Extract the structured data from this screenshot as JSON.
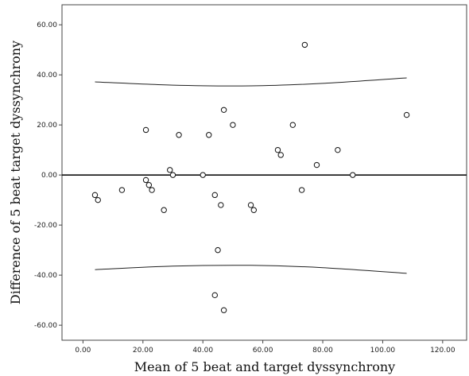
{
  "chart_data": {
    "type": "scatter",
    "xlabel": "Mean of 5 beat and target dyssynchrony",
    "ylabel": "Difference of 5 beat target dyssynchrony",
    "xlim": [
      -7,
      128
    ],
    "ylim": [
      -66,
      68
    ],
    "xticks": [
      0,
      20,
      40,
      60,
      80,
      100,
      120
    ],
    "yticks": [
      -60,
      -40,
      -20,
      0,
      20,
      40,
      60
    ],
    "xtick_labels": [
      "0.00",
      "20.00",
      "40.00",
      "60.00",
      "80.00",
      "100.00",
      "120.00"
    ],
    "ytick_labels": [
      "-60.00",
      "-40.00",
      "-20.00",
      "0.00",
      "20.00",
      "40.00",
      "60.00"
    ],
    "grid": false,
    "reference_line_y": 0,
    "points": [
      {
        "x": 4,
        "y": -8
      },
      {
        "x": 5,
        "y": -10
      },
      {
        "x": 13,
        "y": -6
      },
      {
        "x": 21,
        "y": 18
      },
      {
        "x": 21,
        "y": -2
      },
      {
        "x": 22,
        "y": -4
      },
      {
        "x": 23,
        "y": -6
      },
      {
        "x": 27,
        "y": -14
      },
      {
        "x": 29,
        "y": 2
      },
      {
        "x": 30,
        "y": 0
      },
      {
        "x": 32,
        "y": 16
      },
      {
        "x": 40,
        "y": 0
      },
      {
        "x": 42,
        "y": 16
      },
      {
        "x": 44,
        "y": -8
      },
      {
        "x": 44,
        "y": -48
      },
      {
        "x": 45,
        "y": -30
      },
      {
        "x": 46,
        "y": -12
      },
      {
        "x": 47,
        "y": 26
      },
      {
        "x": 47,
        "y": -54
      },
      {
        "x": 50,
        "y": 20
      },
      {
        "x": 56,
        "y": -12
      },
      {
        "x": 57,
        "y": -14
      },
      {
        "x": 65,
        "y": 10
      },
      {
        "x": 66,
        "y": 8
      },
      {
        "x": 70,
        "y": 20
      },
      {
        "x": 73,
        "y": -6
      },
      {
        "x": 74,
        "y": 52
      },
      {
        "x": 78,
        "y": 4
      },
      {
        "x": 85,
        "y": 10
      },
      {
        "x": 90,
        "y": 0
      },
      {
        "x": 108,
        "y": 24
      }
    ],
    "upper_curve": [
      [
        4,
        37.2
      ],
      [
        30,
        35.9
      ],
      [
        56,
        35.6
      ],
      [
        80,
        36.6
      ],
      [
        108,
        38.8
      ]
    ],
    "lower_curve": [
      [
        4,
        -37.8
      ],
      [
        30,
        -36.4
      ],
      [
        56,
        -36.1
      ],
      [
        80,
        -37.0
      ],
      [
        108,
        -39.3
      ]
    ]
  }
}
